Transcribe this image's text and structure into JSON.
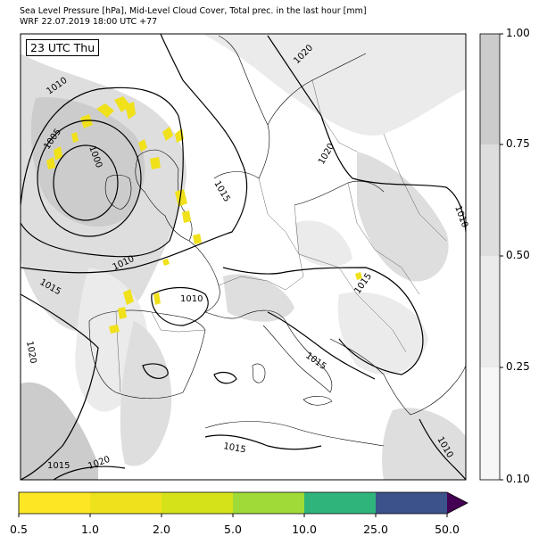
{
  "title": {
    "line1": "Sea Level Pressure [hPa], Mid-Level Cloud Cover, Total prec. in the last hour [mm]",
    "line2": "WRF 22.07.2019 18:00 UTC +77"
  },
  "time_label": "23 UTC Thu",
  "isobar_labels": [
    "1010",
    "1005",
    "1000",
    "1015",
    "1010",
    "1015",
    "1010",
    "1015",
    "1020",
    "1020",
    "1020",
    "1010",
    "1015",
    "1015",
    "1010",
    "1015",
    "1015",
    "1020"
  ],
  "cloud_colorbar": {
    "ticks": [
      "0.10",
      "0.25",
      "0.50",
      "0.75",
      "1.00"
    ],
    "colors": [
      "#f7f7f7",
      "#ebebeb",
      "#dedede",
      "#cccccc"
    ]
  },
  "precip_colorbar": {
    "ticks": [
      "0.5",
      "1.0",
      "2.0",
      "5.0",
      "10.0",
      "25.0",
      "50.0"
    ],
    "colors": [
      "#fde725",
      "#eee21c",
      "#d5e21a",
      "#a0da39",
      "#2fb47c",
      "#3b528b",
      "#440154"
    ]
  }
}
